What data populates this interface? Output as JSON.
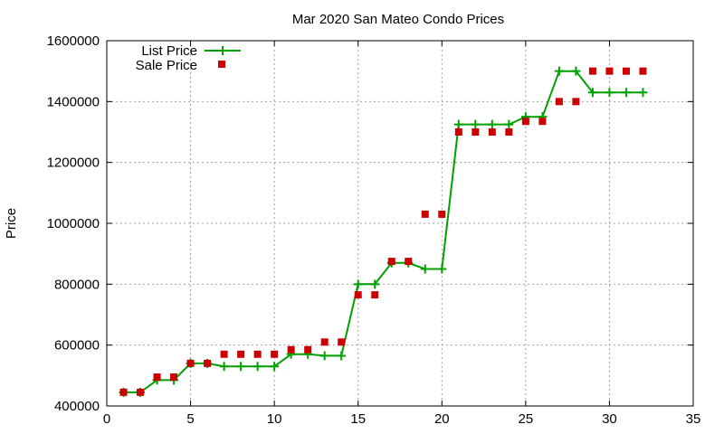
{
  "chart_data": {
    "type": "line",
    "title": "Mar 2020 San Mateo Condo Prices",
    "xlabel": "",
    "ylabel": "Price",
    "xlim": [
      0,
      35
    ],
    "ylim": [
      400000,
      1600000
    ],
    "xticks": [
      0,
      5,
      10,
      15,
      20,
      25,
      30,
      35
    ],
    "yticks": [
      400000,
      600000,
      800000,
      1000000,
      1200000,
      1400000,
      1600000
    ],
    "grid": true,
    "legend_position": "top-left",
    "series": [
      {
        "name": "List Price",
        "style": "line+cross",
        "color": "#00a000",
        "x": [
          1,
          2,
          3,
          4,
          5,
          6,
          7,
          8,
          9,
          10,
          11,
          12,
          13,
          14,
          15,
          16,
          17,
          18,
          19,
          20,
          21,
          22,
          23,
          24,
          25,
          26,
          27,
          28,
          29,
          30,
          31,
          32
        ],
        "y": [
          445000,
          445000,
          485000,
          485000,
          540000,
          540000,
          530000,
          530000,
          530000,
          530000,
          570000,
          570000,
          565000,
          565000,
          800000,
          800000,
          870000,
          870000,
          850000,
          850000,
          1325000,
          1325000,
          1325000,
          1325000,
          1350000,
          1350000,
          1500000,
          1500000,
          1430000,
          1430000,
          1430000,
          1430000
        ]
      },
      {
        "name": "Sale Price",
        "style": "square",
        "color": "#cc0000",
        "x": [
          1,
          2,
          3,
          4,
          5,
          6,
          7,
          8,
          9,
          10,
          11,
          12,
          13,
          14,
          15,
          16,
          17,
          18,
          19,
          20,
          21,
          22,
          23,
          24,
          25,
          26,
          27,
          28,
          29,
          30,
          31,
          32
        ],
        "y": [
          445000,
          445000,
          495000,
          495000,
          540000,
          540000,
          570000,
          570000,
          570000,
          570000,
          585000,
          585000,
          610000,
          610000,
          765000,
          765000,
          875000,
          875000,
          1030000,
          1030000,
          1300000,
          1300000,
          1300000,
          1300000,
          1335000,
          1335000,
          1400000,
          1400000,
          1500000,
          1500000,
          1500000,
          1500000
        ]
      }
    ]
  }
}
